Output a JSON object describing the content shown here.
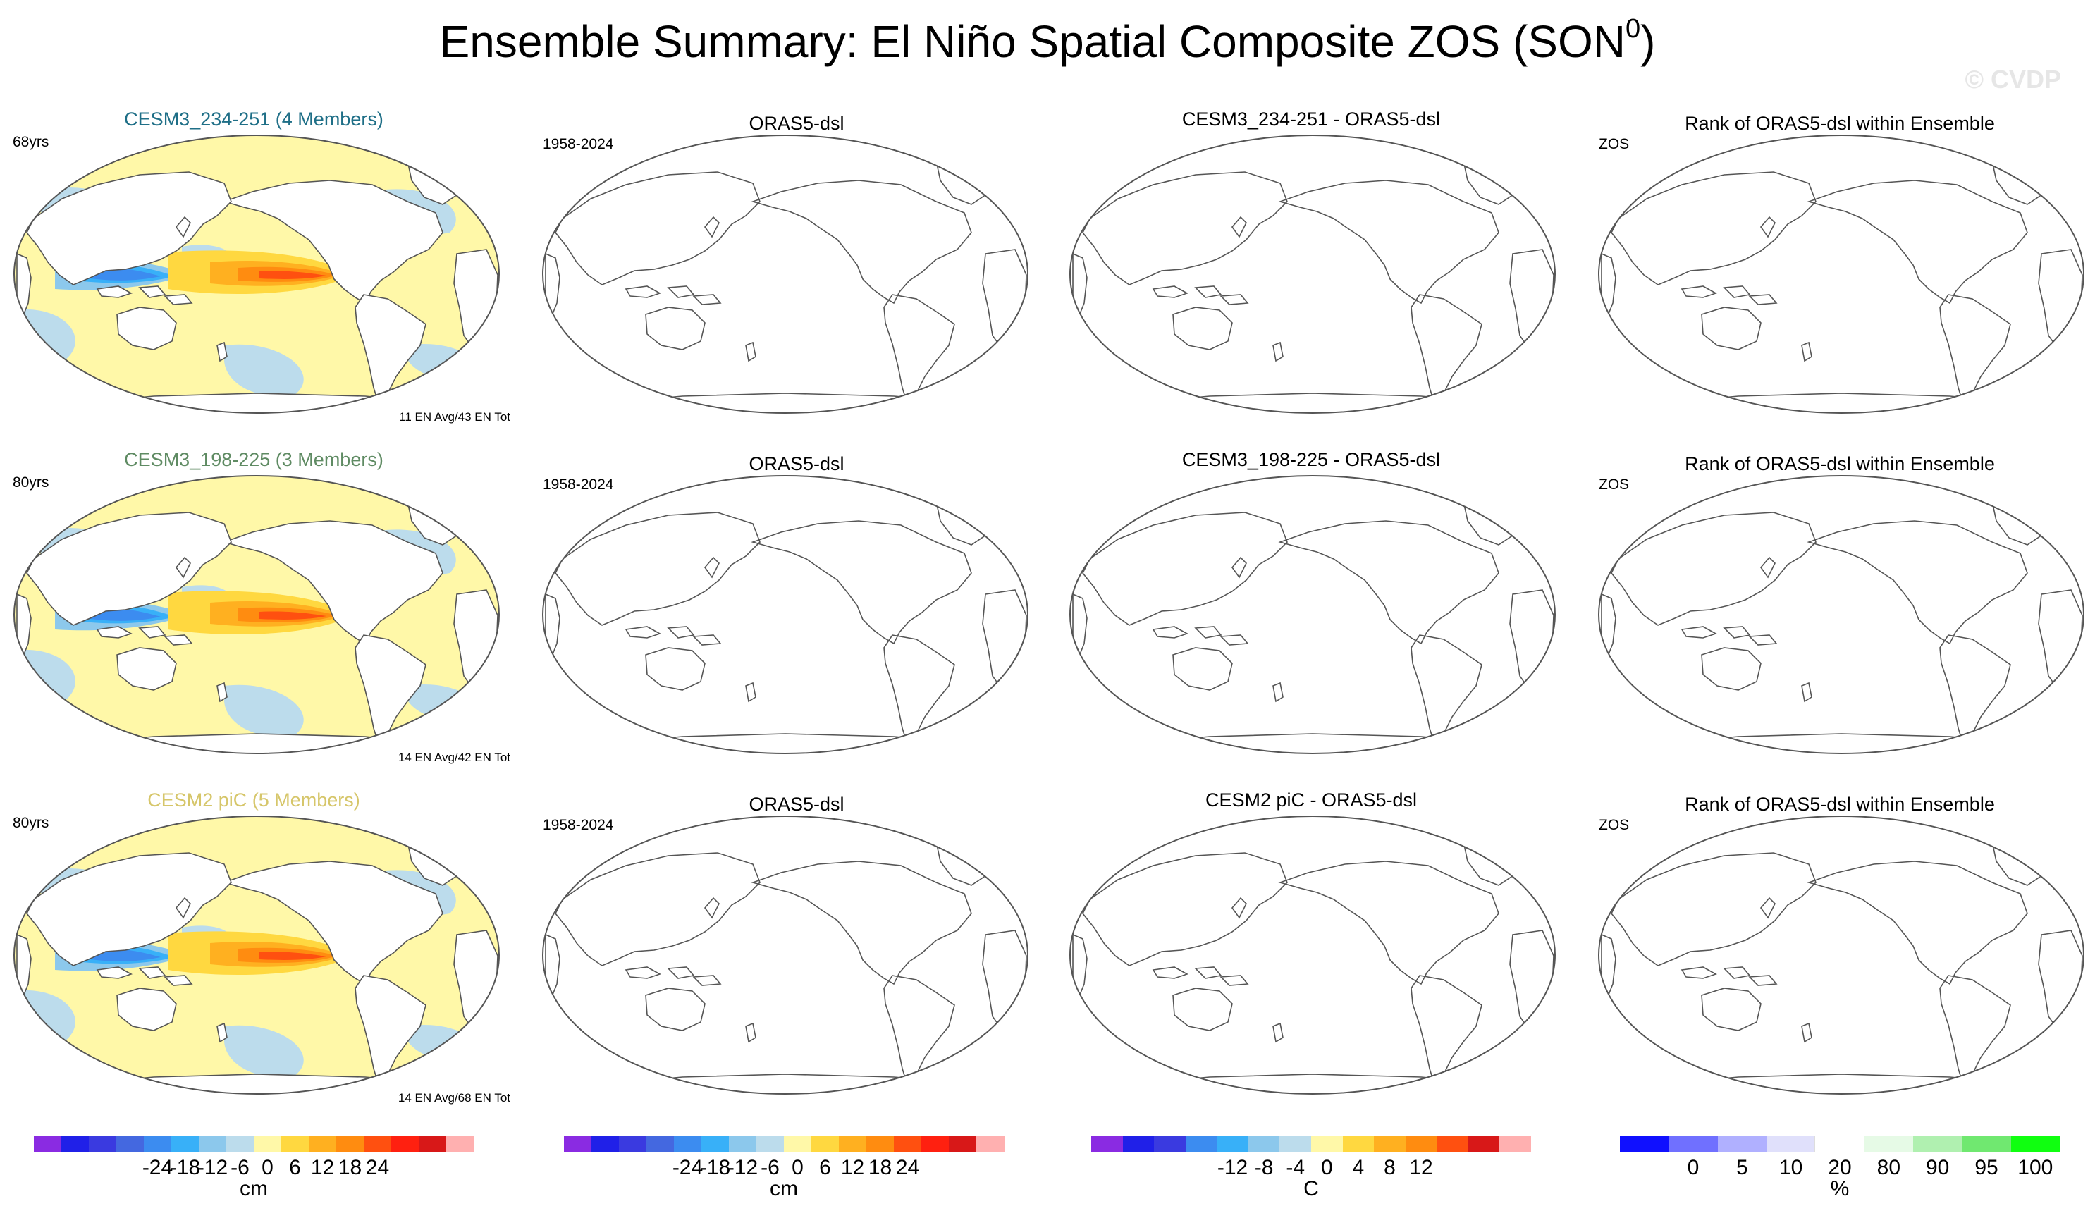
{
  "title": {
    "main": "Ensemble Summary: El Niño Spatial Composite ZOS (SON",
    "superscript": "0",
    "close": ")"
  },
  "watermark": "© CVDP",
  "rows": [
    {
      "ensemble": {
        "title": "CESM3_234-251 (4 Members)",
        "title_color": "#1f6f87",
        "years": "68yrs",
        "counts": "11 EN Avg/43 EN Tot"
      },
      "obs": {
        "title": "ORAS5-dsl",
        "period": "1958-2024"
      },
      "diff": {
        "title": "CESM3_234-251 - ORAS5-dsl"
      },
      "rank": {
        "title": "Rank of ORAS5-dsl within Ensemble",
        "var": "ZOS"
      }
    },
    {
      "ensemble": {
        "title": "CESM3_198-225 (3 Members)",
        "title_color": "#5f8b63",
        "years": "80yrs",
        "counts": "14 EN Avg/42 EN Tot"
      },
      "obs": {
        "title": "ORAS5-dsl",
        "period": "1958-2024"
      },
      "diff": {
        "title": "CESM3_198-225 - ORAS5-dsl"
      },
      "rank": {
        "title": "Rank of ORAS5-dsl within Ensemble",
        "var": "ZOS"
      }
    },
    {
      "ensemble": {
        "title": "CESM2 piC (5 Members)",
        "title_color": "#d6c66a",
        "years": "80yrs",
        "counts": "14 EN Avg/68 EN Tot"
      },
      "obs": {
        "title": "ORAS5-dsl",
        "period": "1958-2024"
      },
      "diff": {
        "title": "CESM2 piC - ORAS5-dsl"
      },
      "rank": {
        "title": "Rank of ORAS5-dsl within Ensemble",
        "var": "ZOS"
      }
    }
  ],
  "colorbars": [
    {
      "unit": "cm",
      "tick_labels": [
        "-24",
        "-18",
        "-12",
        "-6",
        "0",
        "6",
        "12",
        "18",
        "24"
      ],
      "colors": [
        "#8a2be2",
        "#2020e8",
        "#3a3ae0",
        "#4468e0",
        "#3c8cf0",
        "#38b0f8",
        "#8cc8ec",
        "#bcdcec",
        "#fff8a8",
        "#ffd840",
        "#ffb020",
        "#ff8c10",
        "#ff5010",
        "#ff2010",
        "#d81818",
        "#ffb0b0"
      ]
    },
    {
      "unit": "cm",
      "tick_labels": [
        "-24",
        "-18",
        "-12",
        "-6",
        "0",
        "6",
        "12",
        "18",
        "24"
      ],
      "colors": [
        "#8a2be2",
        "#2020e8",
        "#3a3ae0",
        "#4468e0",
        "#3c8cf0",
        "#38b0f8",
        "#8cc8ec",
        "#bcdcec",
        "#fff8a8",
        "#ffd840",
        "#ffb020",
        "#ff8c10",
        "#ff5010",
        "#ff2010",
        "#d81818",
        "#ffb0b0"
      ]
    },
    {
      "unit": "C",
      "tick_labels": [
        "-12",
        "-8",
        "-4",
        "0",
        "4",
        "8",
        "12"
      ],
      "colors": [
        "#8a2be2",
        "#2020e8",
        "#3a3ae0",
        "#3c8cf0",
        "#38b0f8",
        "#8cc8ec",
        "#bcdcec",
        "#fff8a8",
        "#ffd840",
        "#ffb020",
        "#ff8c10",
        "#ff5010",
        "#d81818",
        "#ffb0b0"
      ]
    },
    {
      "unit": "%",
      "tick_labels": [
        "0",
        "5",
        "10",
        "20",
        "80",
        "90",
        "95",
        "100"
      ],
      "colors": [
        "#1010ff",
        "#7070ff",
        "#b0b0ff",
        "#e0e0fb",
        "#ffffff",
        "#e6fae6",
        "#b0f0b0",
        "#70e870",
        "#10ff10"
      ]
    }
  ],
  "chart_data": {
    "type": "heatmap",
    "variable": "ZOS",
    "season": "SON",
    "panels": [
      {
        "row": 1,
        "column": "ensemble",
        "name": "CESM3_234-251 (4 Members)",
        "field_peak_cm": 24,
        "field_min_cm": -18
      },
      {
        "row": 1,
        "column": "observations",
        "name": "ORAS5-dsl",
        "field": "no data shown"
      },
      {
        "row": 1,
        "column": "difference",
        "name": "CESM3_234-251 - ORAS5-dsl",
        "field": "no data shown"
      },
      {
        "row": 1,
        "column": "rank",
        "name": "Rank of ORAS5-dsl within Ensemble",
        "field": "no data shown"
      },
      {
        "row": 2,
        "column": "ensemble",
        "name": "CESM3_198-225 (3 Members)",
        "field_peak_cm": 21,
        "field_min_cm": -15
      },
      {
        "row": 2,
        "column": "observations",
        "name": "ORAS5-dsl",
        "field": "no data shown"
      },
      {
        "row": 2,
        "column": "difference",
        "name": "CESM3_198-225 - ORAS5-dsl",
        "field": "no data shown"
      },
      {
        "row": 2,
        "column": "rank",
        "name": "Rank of ORAS5-dsl within Ensemble",
        "field": "no data shown"
      },
      {
        "row": 3,
        "column": "ensemble",
        "name": "CESM2 piC (5 Members)",
        "field_peak_cm": 18,
        "field_min_cm": -15
      },
      {
        "row": 3,
        "column": "observations",
        "name": "ORAS5-dsl",
        "field": "no data shown"
      },
      {
        "row": 3,
        "column": "difference",
        "name": "CESM2 piC - ORAS5-dsl",
        "field": "no data shown"
      },
      {
        "row": 3,
        "column": "rank",
        "name": "Rank of ORAS5-dsl within Ensemble",
        "field": "no data shown"
      }
    ]
  }
}
